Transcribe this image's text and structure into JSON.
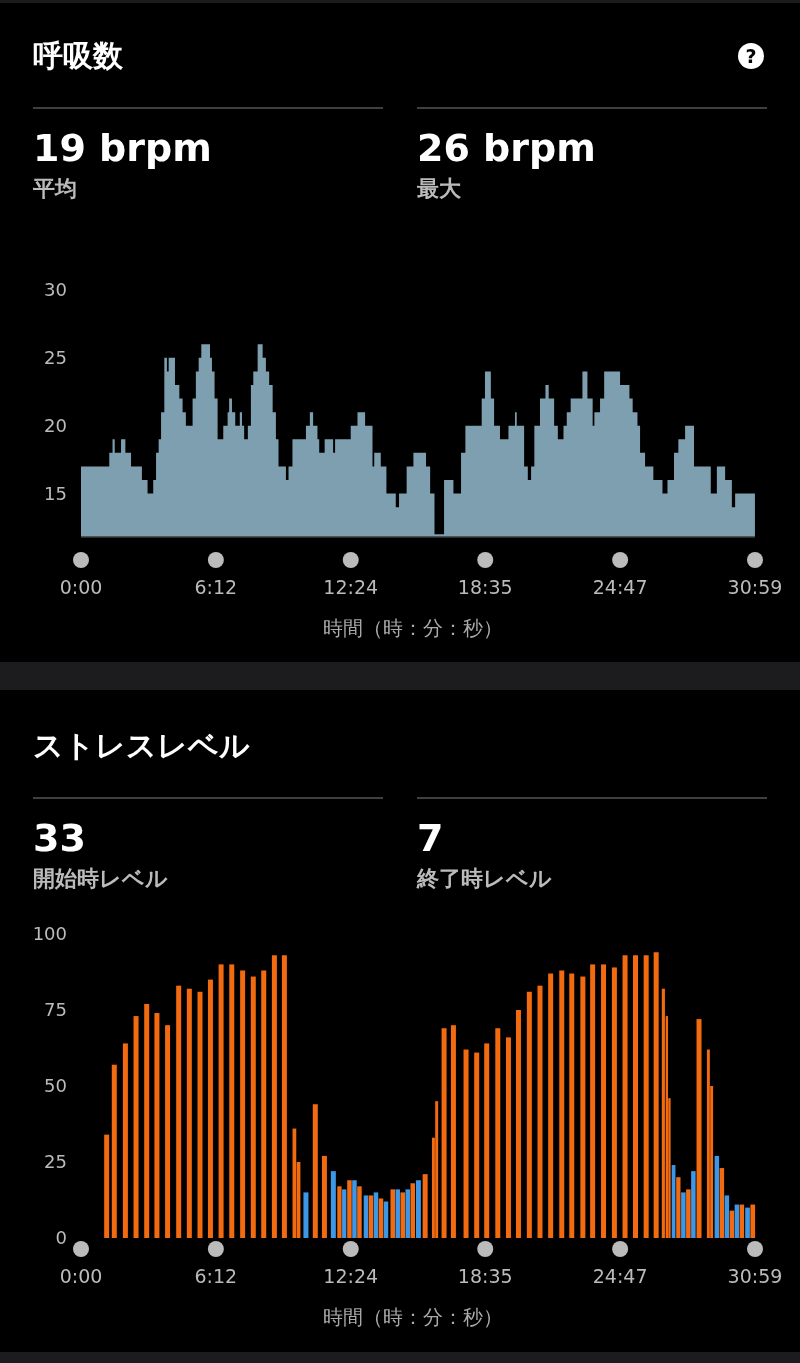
{
  "chart_data": [
    {
      "type": "area",
      "title": "呼吸数",
      "annotations": [
        "?",
        "19 brpm",
        "平均",
        "26 brpm",
        "最大"
      ],
      "xlabel": "時間（時：分：秒）",
      "xlim": [
        0,
        30.9833
      ],
      "xticks": [
        {
          "value": 0,
          "label": "0:00"
        },
        {
          "value": 6.2,
          "label": "6:12"
        },
        {
          "value": 12.4,
          "label": "12:24"
        },
        {
          "value": 18.5833,
          "label": "18:35"
        },
        {
          "value": 24.7833,
          "label": "24:47"
        },
        {
          "value": 30.9833,
          "label": "30:59"
        }
      ],
      "ylim": [
        11.8,
        30
      ],
      "yticks": [
        15,
        20,
        25,
        30
      ],
      "color": "#7d9fb0",
      "x": [
        0,
        1.3,
        1.45,
        1.55,
        1.84,
        2.04,
        2.3,
        2.8,
        3.06,
        3.32,
        3.45,
        3.57,
        3.68,
        3.83,
        3.95,
        4.03,
        4.32,
        4.52,
        4.67,
        4.82,
        5.13,
        5.28,
        5.41,
        5.53,
        5.93,
        6.02,
        6.14,
        6.28,
        6.54,
        6.74,
        6.81,
        6.94,
        7.09,
        7.3,
        7.4,
        7.5,
        7.67,
        7.81,
        7.92,
        8.12,
        8.35,
        8.5,
        8.65,
        8.81,
        8.96,
        9.08,
        9.42,
        9.54,
        9.72,
        10.34,
        10.52,
        10.67,
        10.87,
        10.95,
        11.2,
        11.59,
        11.68,
        12.4,
        12.71,
        13.06,
        13.4,
        13.48,
        13.78,
        14.04,
        14.47,
        14.62,
        14.97,
        15.28,
        15.86,
        16.05,
        16.25,
        16.69,
        17.12,
        17.47,
        17.67,
        18.42,
        18.57,
        18.84,
        18.99,
        19.26,
        19.65,
        19.95,
        20.03,
        20.37,
        20.54,
        20.69,
        20.84,
        21.1,
        21.35,
        21.5,
        21.75,
        21.92,
        22.18,
        22.33,
        22.51,
        23.05,
        23.28,
        23.52,
        23.6,
        23.86,
        24.05,
        24.78,
        25.21,
        25.36,
        25.58,
        25.7,
        25.93,
        26.31,
        26.73,
        26.96,
        27.26,
        27.46,
        27.77,
        28.18,
        28.95,
        29.23,
        29.61,
        29.92,
        30.07,
        30.98
      ],
      "values": [
        17,
        18,
        19,
        18,
        19,
        18,
        17,
        16,
        15,
        16,
        18,
        19,
        21,
        25,
        24,
        25,
        23,
        22,
        21,
        20,
        22,
        24,
        25,
        26,
        25,
        24,
        22,
        19,
        20,
        21,
        22,
        21,
        20,
        21,
        20,
        19,
        20,
        23,
        24,
        26,
        25,
        24,
        23,
        21,
        19,
        17,
        16,
        17,
        19,
        20,
        21,
        20,
        19,
        18,
        19,
        18,
        19,
        20,
        21,
        20,
        17,
        18,
        17,
        15,
        14,
        15,
        17,
        18,
        17,
        15,
        12,
        16,
        15,
        18,
        20,
        22,
        24,
        22,
        20,
        19,
        20,
        21,
        20,
        17,
        16,
        17,
        20,
        22,
        23,
        22,
        20,
        19,
        20,
        21,
        22,
        24,
        22,
        20,
        21,
        22,
        24,
        23,
        22,
        21,
        20,
        18,
        17,
        16,
        15,
        16,
        18,
        19,
        20,
        17,
        15,
        17,
        16,
        14,
        15,
        15
      ]
    },
    {
      "type": "bar",
      "title": "ストレスレベル",
      "annotations": [
        "33",
        "開始時レベル",
        "7",
        "終了時レベル"
      ],
      "xlabel": "時間（時：分：秒）",
      "xlim": [
        0,
        30.9833
      ],
      "xticks": [
        {
          "value": 0,
          "label": "0:00"
        },
        {
          "value": 6.2,
          "label": "6:12"
        },
        {
          "value": 12.4,
          "label": "12:24"
        },
        {
          "value": 18.5833,
          "label": "18:35"
        },
        {
          "value": 24.7833,
          "label": "24:47"
        },
        {
          "value": 30.9833,
          "label": "30:59"
        }
      ],
      "ylim": [
        0,
        100
      ],
      "yticks": [
        0,
        25,
        50,
        75,
        100
      ],
      "x": [
        1.18,
        1.53,
        2.04,
        2.53,
        3.02,
        3.49,
        3.98,
        4.49,
        4.98,
        5.47,
        5.95,
        6.44,
        6.93,
        7.43,
        7.92,
        8.4,
        8.89,
        9.35,
        9.81,
        10.0,
        10.34,
        10.77,
        11.19,
        11.6,
        11.88,
        12.1,
        12.34,
        12.57,
        12.8,
        13.1,
        13.33,
        13.56,
        13.79,
        14.02,
        14.33,
        14.56,
        14.79,
        15.02,
        15.25,
        15.51,
        15.82,
        16.2,
        16.35,
        16.69,
        17.12,
        17.7,
        18.19,
        18.65,
        19.16,
        19.65,
        20.11,
        20.61,
        21.1,
        21.59,
        22.1,
        22.56,
        23.07,
        23.52,
        24.02,
        24.52,
        25.01,
        25.49,
        25.98,
        26.44,
        26.77,
        26.93,
        27.05,
        27.24,
        27.46,
        27.69,
        27.92,
        28.15,
        28.41,
        28.84,
        28.99,
        29.23,
        29.46,
        29.69,
        29.92,
        30.15,
        30.38,
        30.64,
        30.88
      ],
      "values": [
        34,
        57,
        64,
        73,
        77,
        74,
        70,
        83,
        82,
        81,
        85,
        90,
        90,
        88,
        86,
        88,
        93,
        93,
        36,
        25,
        15,
        44,
        27,
        22,
        17,
        16,
        19,
        19,
        17,
        14,
        14,
        15,
        13,
        12,
        16,
        16,
        15,
        16,
        18,
        19,
        21,
        33,
        45,
        69,
        70,
        62,
        61,
        64,
        69,
        66,
        75,
        81,
        83,
        87,
        88,
        87,
        86,
        90,
        90,
        89,
        93,
        93,
        93,
        94,
        82,
        73,
        46,
        24,
        20,
        15,
        16,
        22,
        72,
        62,
        50,
        27,
        23,
        14,
        9,
        11,
        11,
        10,
        11
      ],
      "colors": [
        "#f26b11",
        "#f26b11",
        "#f26b11",
        "#f26b11",
        "#f26b11",
        "#f26b11",
        "#f26b11",
        "#f26b11",
        "#f26b11",
        "#f26b11",
        "#f26b11",
        "#f26b11",
        "#f26b11",
        "#f26b11",
        "#f26b11",
        "#f26b11",
        "#f26b11",
        "#f26b11",
        "#f26b11",
        "#f26b11",
        "#3d96e6",
        "#f26b11",
        "#f26b11",
        "#3d96e6",
        "#f26b11",
        "#3d96e6",
        "#f26b11",
        "#3d96e6",
        "#f26b11",
        "#3d96e6",
        "#f26b11",
        "#3d96e6",
        "#f26b11",
        "#3d96e6",
        "#f26b11",
        "#3d96e6",
        "#f26b11",
        "#3d96e6",
        "#f26b11",
        "#3d96e6",
        "#f26b11",
        "#f26b11",
        "#f26b11",
        "#f26b11",
        "#f26b11",
        "#f26b11",
        "#f26b11",
        "#f26b11",
        "#f26b11",
        "#f26b11",
        "#f26b11",
        "#f26b11",
        "#f26b11",
        "#f26b11",
        "#f26b11",
        "#f26b11",
        "#f26b11",
        "#f26b11",
        "#f26b11",
        "#f26b11",
        "#f26b11",
        "#f26b11",
        "#f26b11",
        "#f26b11",
        "#f26b11",
        "#f26b11",
        "#f26b11",
        "#3d96e6",
        "#f26b11",
        "#3d96e6",
        "#f26b11",
        "#3d96e6",
        "#f26b11",
        "#f26b11",
        "#f26b11",
        "#3d96e6",
        "#f26b11",
        "#3d96e6",
        "#f26b11",
        "#3d96e6",
        "#f26b11",
        "#3d96e6",
        "#f26b11"
      ]
    }
  ]
}
